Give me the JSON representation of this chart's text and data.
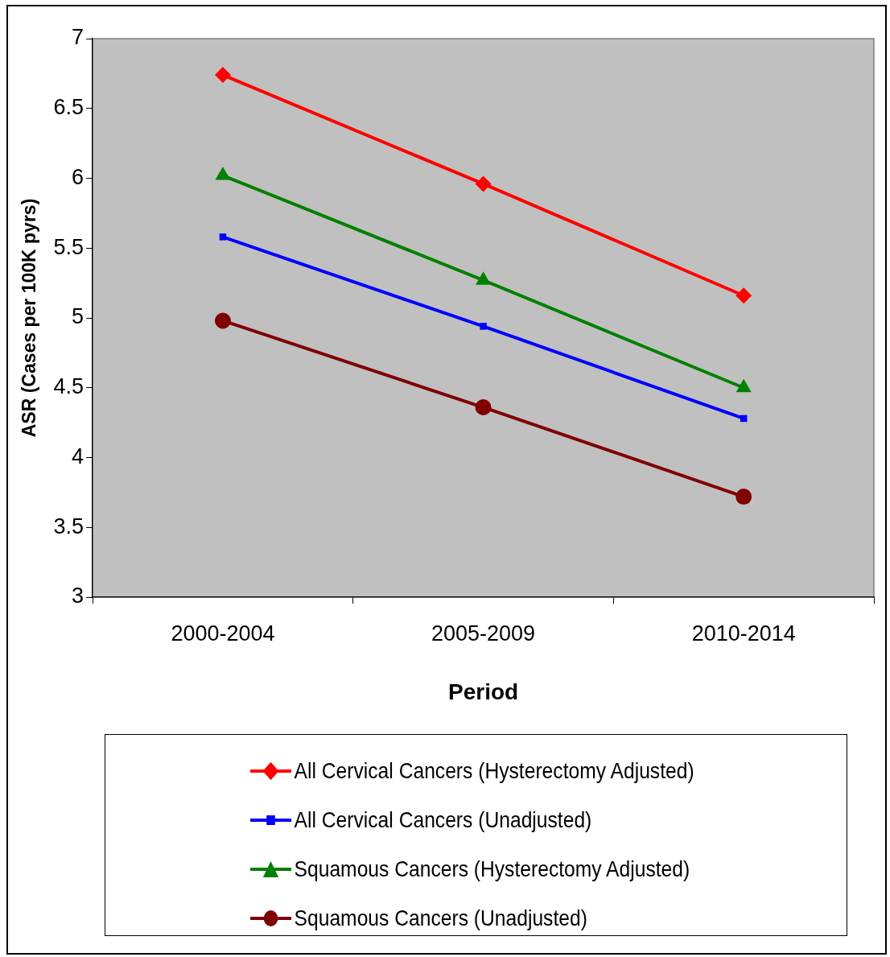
{
  "chart_data": {
    "type": "line",
    "xlabel": "Period",
    "ylabel": "ASR (Cases per 100K pyrs)",
    "categories": [
      "2000-2004",
      "2005-2009",
      "2010-2014"
    ],
    "ylim": [
      3,
      7
    ],
    "yticks": [
      3,
      3.5,
      4,
      4.5,
      5,
      5.5,
      6,
      6.5,
      7
    ],
    "grid": false,
    "legend": "bottom",
    "line_style": "solid",
    "series": [
      {
        "name": "All Cervical Cancers (Hysterectomy Adjusted)",
        "color": "#ff0000",
        "marker": "diamond",
        "values": [
          6.74,
          5.96,
          5.16
        ]
      },
      {
        "name": "All Cervical Cancers (Unadjusted)",
        "color": "#0000ff",
        "marker": "square",
        "values": [
          5.58,
          4.94,
          4.28
        ]
      },
      {
        "name": "Squamous Cancers (Hysterectomy Adjusted)",
        "color": "#008000",
        "marker": "triangle",
        "values": [
          6.02,
          5.27,
          4.5
        ]
      },
      {
        "name": "Squamous Cancers (Unadjusted)",
        "color": "#800000",
        "marker": "circle",
        "values": [
          4.98,
          4.36,
          3.72
        ]
      }
    ]
  }
}
